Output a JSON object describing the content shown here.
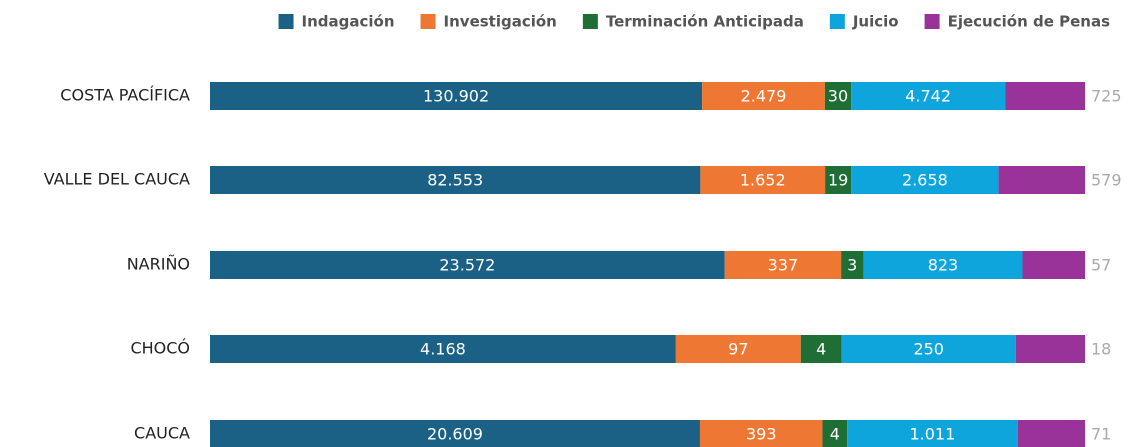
{
  "chart_data": {
    "type": "stacked-bar-horizontal",
    "categories": [
      "COSTA PACÍFICA",
      "VALLE DEL CAUCA",
      "NARIÑO",
      "CHOCÓ",
      "CAUCA"
    ],
    "series": [
      {
        "name": "Indagación",
        "color": "#1a6185",
        "values": [
          130902,
          82553,
          23572,
          4168,
          20609
        ],
        "value_labels": [
          "130.902",
          "82.553",
          "23.572",
          "4.168",
          "20.609"
        ]
      },
      {
        "name": "Investigación",
        "color": "#ee7733",
        "values": [
          2479,
          1652,
          337,
          97,
          393
        ],
        "value_labels": [
          "2.479",
          "1.652",
          "337",
          "97",
          "393"
        ]
      },
      {
        "name": "Terminación Anticipada",
        "color": "#1f6e35",
        "values": [
          30,
          19,
          3,
          4,
          4
        ]
      },
      {
        "name": "Juicio",
        "color": "#0ea5dc",
        "values": [
          4742,
          2658,
          823,
          250,
          1011
        ],
        "value_labels": [
          "4.742",
          "2.658",
          "823",
          "250",
          "1.011"
        ]
      },
      {
        "name": "Ejecución de Penas",
        "color": "#993399",
        "values": [
          725,
          579,
          57,
          18,
          71
        ]
      }
    ],
    "legend": "top"
  }
}
